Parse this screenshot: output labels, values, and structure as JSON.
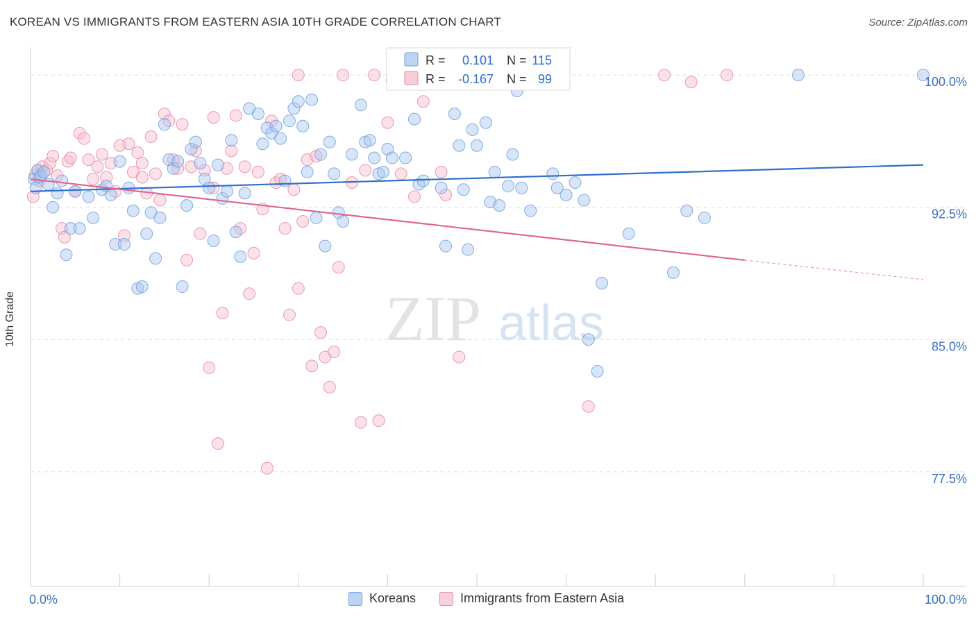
{
  "title": "KOREAN VS IMMIGRANTS FROM EASTERN ASIA 10TH GRADE CORRELATION CHART",
  "source": "Source: ZipAtlas.com",
  "watermark": {
    "zip": "ZIP",
    "atlas": "atlas"
  },
  "colors": {
    "blue_fill": "#a9c6ef",
    "blue_stroke": "#6f9fdd",
    "blue_line": "#2f6fcb",
    "pink_fill": "#f6bccd",
    "pink_stroke": "#e88aa7",
    "pink_line": "#e06694",
    "tick_label": "#3a6fc4",
    "grid": "#dedede"
  },
  "chart_data": {
    "type": "scatter",
    "xlabel": "",
    "ylabel": "10th Grade",
    "xlim": [
      0,
      100
    ],
    "ylim": [
      71.0,
      101.5
    ],
    "x_tick_labels": [
      {
        "value": 0,
        "label": "0.0%"
      },
      {
        "value": 100,
        "label": "100.0%"
      }
    ],
    "y_ticks": [
      {
        "value": 100.0,
        "label": "100.0%"
      },
      {
        "value": 92.5,
        "label": "92.5%"
      },
      {
        "value": 85.0,
        "label": "85.0%"
      },
      {
        "value": 77.5,
        "label": "77.5%"
      }
    ],
    "grid": true,
    "legend_position": "top-center",
    "stats": [
      {
        "r_label": "R =",
        "r_value": "0.101",
        "n_label": "N =",
        "n_value": "115"
      },
      {
        "r_label": "R =",
        "r_value": "-0.167",
        "n_label": "N =",
        "n_value": "99"
      }
    ],
    "series": [
      {
        "name": "Koreans",
        "color": "blue",
        "trend": {
          "x0": 0,
          "y0": 93.4,
          "x1": 100,
          "y1": 94.9
        },
        "points": [
          [
            0.4,
            94.1
          ],
          [
            0.6,
            93.6
          ],
          [
            0.8,
            94.6
          ],
          [
            1.0,
            94.2
          ],
          [
            1.2,
            94.3
          ],
          [
            1.5,
            94.5
          ],
          [
            2.0,
            93.8
          ],
          [
            2.5,
            92.5
          ],
          [
            3.0,
            93.3
          ],
          [
            3.5,
            94.0
          ],
          [
            4.0,
            89.8
          ],
          [
            4.5,
            91.3
          ],
          [
            5.0,
            93.4
          ],
          [
            5.5,
            91.3
          ],
          [
            6.5,
            93.1
          ],
          [
            7.0,
            91.9
          ],
          [
            8.0,
            93.5
          ],
          [
            8.5,
            93.7
          ],
          [
            9.0,
            93.2
          ],
          [
            9.5,
            90.4
          ],
          [
            10.0,
            95.1
          ],
          [
            10.5,
            90.4
          ],
          [
            11.0,
            93.6
          ],
          [
            11.5,
            92.3
          ],
          [
            12.0,
            87.9
          ],
          [
            12.5,
            88.0
          ],
          [
            13.0,
            91.0
          ],
          [
            13.5,
            92.2
          ],
          [
            14.0,
            89.6
          ],
          [
            14.5,
            91.9
          ],
          [
            15.0,
            97.2
          ],
          [
            15.5,
            95.2
          ],
          [
            16.0,
            94.7
          ],
          [
            16.5,
            95.1
          ],
          [
            17.0,
            88.0
          ],
          [
            17.5,
            92.6
          ],
          [
            18.0,
            95.8
          ],
          [
            18.5,
            96.2
          ],
          [
            19.0,
            95.0
          ],
          [
            19.5,
            94.1
          ],
          [
            20.0,
            93.6
          ],
          [
            20.5,
            90.6
          ],
          [
            21.0,
            94.9
          ],
          [
            21.5,
            93.0
          ],
          [
            22.0,
            93.4
          ],
          [
            22.5,
            96.3
          ],
          [
            23.0,
            91.1
          ],
          [
            23.5,
            89.7
          ],
          [
            24.0,
            93.3
          ],
          [
            24.5,
            98.1
          ],
          [
            25.5,
            97.8
          ],
          [
            26.0,
            96.1
          ],
          [
            26.5,
            97.0
          ],
          [
            27.0,
            96.7
          ],
          [
            27.5,
            97.1
          ],
          [
            28.0,
            96.4
          ],
          [
            28.5,
            94.0
          ],
          [
            29.0,
            97.4
          ],
          [
            29.5,
            98.1
          ],
          [
            30.0,
            98.5
          ],
          [
            30.5,
            97.1
          ],
          [
            31.0,
            94.5
          ],
          [
            31.5,
            98.6
          ],
          [
            32.0,
            91.9
          ],
          [
            32.5,
            95.5
          ],
          [
            33.0,
            90.3
          ],
          [
            33.5,
            96.2
          ],
          [
            34.0,
            94.4
          ],
          [
            34.5,
            92.2
          ],
          [
            35.0,
            91.7
          ],
          [
            36.0,
            95.5
          ],
          [
            37.0,
            98.3
          ],
          [
            37.5,
            96.2
          ],
          [
            38.0,
            96.3
          ],
          [
            38.5,
            95.3
          ],
          [
            39.0,
            94.4
          ],
          [
            39.5,
            94.5
          ],
          [
            40.0,
            95.8
          ],
          [
            40.5,
            95.3
          ],
          [
            41.0,
            99.9
          ],
          [
            42.0,
            95.3
          ],
          [
            43.0,
            97.5
          ],
          [
            43.5,
            93.8
          ],
          [
            44.0,
            94.0
          ],
          [
            46.0,
            93.6
          ],
          [
            46.5,
            90.3
          ],
          [
            47.5,
            97.8
          ],
          [
            48.0,
            96.0
          ],
          [
            48.5,
            93.5
          ],
          [
            49.0,
            90.1
          ],
          [
            49.5,
            96.9
          ],
          [
            50.0,
            96.0
          ],
          [
            51.0,
            97.3
          ],
          [
            51.5,
            92.8
          ],
          [
            52.0,
            94.5
          ],
          [
            52.5,
            92.6
          ],
          [
            53.5,
            93.7
          ],
          [
            54.0,
            95.5
          ],
          [
            54.5,
            99.1
          ],
          [
            55.0,
            93.6
          ],
          [
            56.0,
            92.3
          ],
          [
            58.5,
            94.4
          ],
          [
            59.0,
            93.6
          ],
          [
            60.0,
            93.2
          ],
          [
            61.0,
            93.9
          ],
          [
            62.0,
            92.9
          ],
          [
            62.5,
            85.0
          ],
          [
            63.5,
            83.2
          ],
          [
            64.0,
            88.2
          ],
          [
            67.0,
            91.0
          ],
          [
            72.0,
            88.8
          ],
          [
            73.5,
            92.3
          ],
          [
            75.5,
            91.9
          ],
          [
            86.0,
            100.0
          ],
          [
            100.0,
            100.0
          ]
        ]
      },
      {
        "name": "Immigrants from Eastern Asia",
        "color": "pink",
        "trend": {
          "x0": 0,
          "y0": 94.1,
          "x1": 80,
          "y1": 89.5,
          "dash_x1": 100,
          "dash_y1": 88.4
        },
        "points": [
          [
            0.3,
            93.1
          ],
          [
            0.5,
            94.3
          ],
          [
            0.8,
            94.6
          ],
          [
            1.0,
            94.0
          ],
          [
            1.3,
            94.8
          ],
          [
            1.8,
            94.6
          ],
          [
            2.2,
            95.0
          ],
          [
            2.5,
            95.4
          ],
          [
            3.0,
            94.3
          ],
          [
            3.5,
            91.3
          ],
          [
            3.8,
            90.8
          ],
          [
            4.2,
            95.1
          ],
          [
            4.5,
            95.3
          ],
          [
            5.0,
            93.4
          ],
          [
            5.5,
            96.7
          ],
          [
            6.0,
            96.4
          ],
          [
            6.5,
            95.2
          ],
          [
            7.0,
            94.1
          ],
          [
            7.5,
            94.8
          ],
          [
            8.0,
            95.5
          ],
          [
            8.5,
            94.2
          ],
          [
            9.0,
            95.0
          ],
          [
            9.5,
            93.4
          ],
          [
            10.0,
            96.0
          ],
          [
            10.5,
            90.9
          ],
          [
            11.0,
            96.1
          ],
          [
            11.5,
            94.5
          ],
          [
            12.0,
            95.6
          ],
          [
            12.5,
            94.2
          ],
          [
            13.0,
            93.3
          ],
          [
            13.5,
            96.5
          ],
          [
            14.0,
            94.4
          ],
          [
            14.5,
            92.9
          ],
          [
            15.0,
            97.8
          ],
          [
            15.5,
            97.4
          ],
          [
            16.0,
            95.2
          ],
          [
            16.5,
            94.7
          ],
          [
            17.0,
            97.2
          ],
          [
            17.5,
            89.5
          ],
          [
            18.0,
            94.8
          ],
          [
            18.5,
            95.7
          ],
          [
            19.0,
            91.0
          ],
          [
            19.5,
            94.6
          ],
          [
            20.0,
            83.4
          ],
          [
            20.5,
            93.6
          ],
          [
            21.0,
            79.1
          ],
          [
            21.5,
            86.5
          ],
          [
            22.0,
            94.7
          ],
          [
            22.5,
            95.7
          ],
          [
            23.0,
            97.7
          ],
          [
            23.5,
            91.3
          ],
          [
            24.0,
            94.8
          ],
          [
            24.5,
            87.6
          ],
          [
            25.0,
            89.9
          ],
          [
            25.5,
            94.5
          ],
          [
            26.0,
            92.4
          ],
          [
            26.5,
            77.7
          ],
          [
            27.0,
            97.4
          ],
          [
            27.5,
            93.9
          ],
          [
            28.0,
            94.1
          ],
          [
            28.5,
            91.3
          ],
          [
            29.0,
            86.4
          ],
          [
            29.5,
            93.5
          ],
          [
            30.0,
            87.9
          ],
          [
            30.5,
            91.7
          ],
          [
            31.0,
            95.2
          ],
          [
            31.5,
            83.5
          ],
          [
            32.0,
            95.4
          ],
          [
            32.5,
            85.4
          ],
          [
            33.0,
            84.0
          ],
          [
            33.5,
            82.3
          ],
          [
            34.0,
            84.3
          ],
          [
            34.5,
            89.1
          ],
          [
            35.0,
            100.0
          ],
          [
            36.0,
            93.9
          ],
          [
            37.0,
            80.3
          ],
          [
            37.5,
            94.6
          ],
          [
            38.5,
            100.0
          ],
          [
            39.0,
            80.4
          ],
          [
            40.0,
            97.3
          ],
          [
            40.5,
            99.7
          ],
          [
            41.0,
            100.0
          ],
          [
            41.5,
            94.4
          ],
          [
            42.0,
            100.0
          ],
          [
            43.0,
            93.1
          ],
          [
            46.0,
            94.5
          ],
          [
            46.5,
            93.2
          ],
          [
            48.0,
            84.0
          ],
          [
            52.0,
            100.0
          ],
          [
            53.0,
            100.0
          ],
          [
            62.5,
            81.2
          ],
          [
            71.0,
            100.0
          ],
          [
            78.0,
            100.0
          ],
          [
            74.0,
            99.6
          ],
          [
            20.5,
            97.6
          ],
          [
            30.0,
            100.0
          ],
          [
            44.0,
            98.5
          ],
          [
            12.5,
            95.0
          ],
          [
            54.5,
            100.0
          ]
        ]
      }
    ]
  }
}
